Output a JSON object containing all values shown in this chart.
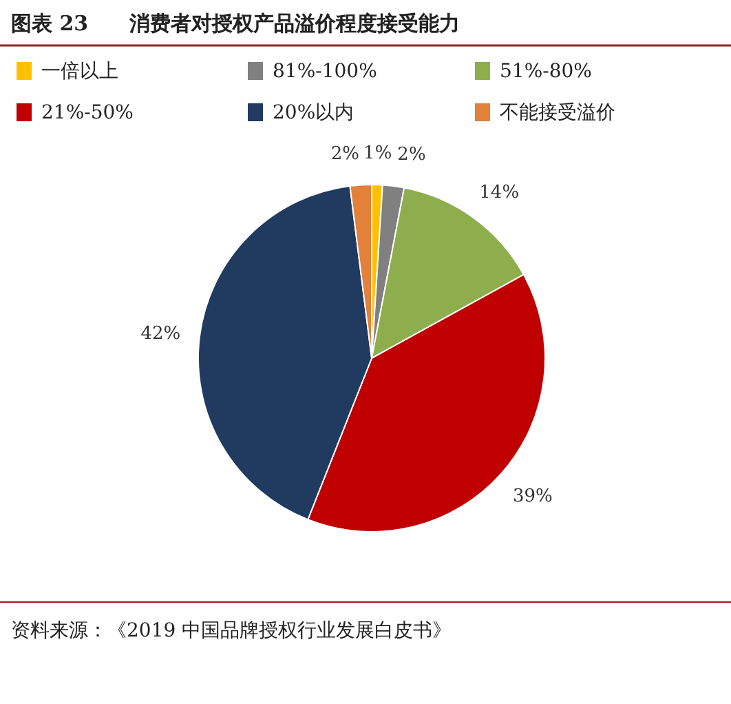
{
  "chart_data": {
    "type": "pie",
    "title": "图表 23　　消费者对授权产品溢价程度接受能力",
    "categories": [
      "一倍以上",
      "81%-100%",
      "51%-80%",
      "21%-50%",
      "20%以内",
      "不能接受溢价"
    ],
    "values": [
      1,
      2,
      14,
      39,
      42,
      2
    ],
    "colors": [
      "#ffc000",
      "#808080",
      "#8eae4e",
      "#c00000",
      "#203a60",
      "#e3803a"
    ],
    "value_labels": [
      "1%",
      "2%",
      "14%",
      "39%",
      "42%",
      "2%"
    ],
    "legend": "top",
    "annotations": [
      "资料来源：《2019 中国品牌授权行业发展白皮书》"
    ]
  }
}
